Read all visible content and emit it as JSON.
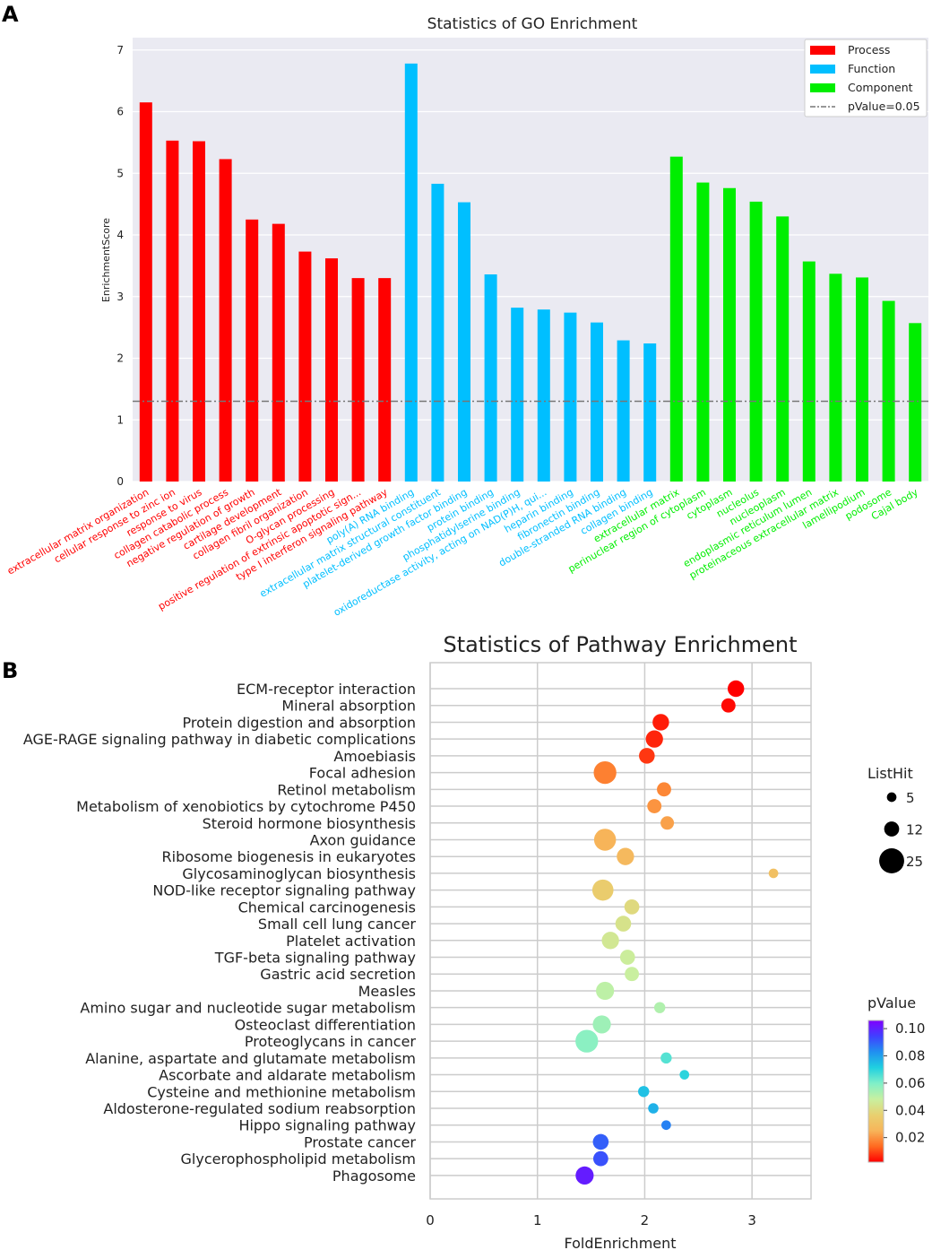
{
  "panel_a_label": "A",
  "panel_b_label": "B",
  "colors": {
    "process": "#ff0000",
    "function": "#00bfff",
    "component": "#00ee00",
    "threshold": "#777777",
    "panel_bg": "#eaeaf2",
    "pvalue_colormap": [
      "#ff0000",
      "#ff6a20",
      "#f7b55a",
      "#e8d070",
      "#c8f0a0",
      "#80f0c8",
      "#20d0e0",
      "#2090f0",
      "#4040ff",
      "#8000ff"
    ]
  },
  "chart_data": [
    {
      "type": "bar",
      "title": "Statistics of GO Enrichment",
      "xlabel": "",
      "ylabel": "EnrichmentScore",
      "ylim": [
        0,
        7.2
      ],
      "yticks": [
        0,
        1,
        2,
        3,
        4,
        5,
        6,
        7
      ],
      "grid": true,
      "legend_position": "top-right",
      "legend": [
        {
          "label": "Process",
          "group": "process"
        },
        {
          "label": "Function",
          "group": "function"
        },
        {
          "label": "Component",
          "group": "component"
        },
        {
          "label": "pValue=0.05",
          "group": "threshold"
        }
      ],
      "threshold": {
        "label": "pValue=0.05",
        "value": 1.301
      },
      "series": [
        {
          "name": "Process",
          "group": "process",
          "categories": [
            "extracellular matrix organization",
            "cellular response to zinc ion",
            "response to virus",
            "collagen catabolic process",
            "negative regulation of growth",
            "cartilage development",
            "collagen fibril organization",
            "O-glycan processing",
            "positive regulation of extrinsic apoptotic sign...",
            "type I interferon signaling pathway"
          ],
          "values": [
            6.15,
            5.53,
            5.52,
            5.23,
            4.25,
            4.18,
            3.73,
            3.62,
            3.3,
            3.3
          ]
        },
        {
          "name": "Function",
          "group": "function",
          "categories": [
            "poly(A) RNA binding",
            "extracellular matrix structural constituent",
            "platelet-derived growth factor binding",
            "protein binding",
            "phosphatidylserine binding",
            "oxidoreductase activity, acting on NAD(P)H, qui...",
            "heparin binding",
            "fibronectin binding",
            "double-stranded RNA binding",
            "collagen binding"
          ],
          "values": [
            6.78,
            4.83,
            4.53,
            3.36,
            2.82,
            2.79,
            2.74,
            2.58,
            2.29,
            2.24
          ]
        },
        {
          "name": "Component",
          "group": "component",
          "categories": [
            "extracellular matrix",
            "perinuclear region of cytoplasm",
            "cytoplasm",
            "nucleolus",
            "nucleoplasm",
            "endoplasmic reticulum lumen",
            "proteinaceous extracellular matrix",
            "lamellipodium",
            "podosome",
            "Cajal body"
          ],
          "values": [
            5.27,
            4.85,
            4.76,
            4.54,
            4.3,
            3.57,
            3.37,
            3.31,
            2.93,
            2.57
          ]
        }
      ]
    },
    {
      "type": "scatter",
      "title": "Statistics of Pathway Enrichment",
      "xlabel": "FoldEnrichment",
      "ylabel": "",
      "xlim": [
        0,
        3.55
      ],
      "xticks": [
        0,
        1,
        2,
        3
      ],
      "grid": true,
      "size_legend_title": "ListHit",
      "size_legend": [
        5,
        12,
        25
      ],
      "color_legend_title": "pValue",
      "colorbar_ticks": [
        0.1,
        0.08,
        0.06,
        0.04,
        0.02
      ],
      "colorbar_range": [
        0.002,
        0.106
      ],
      "points": [
        {
          "pathway": "ECM-receptor interaction",
          "fold": 2.85,
          "listhit": 14,
          "pvalue": 0.002
        },
        {
          "pathway": "Mineral absorption",
          "fold": 2.78,
          "listhit": 11,
          "pvalue": 0.003
        },
        {
          "pathway": "Protein digestion and absorption",
          "fold": 2.15,
          "listhit": 14,
          "pvalue": 0.005
        },
        {
          "pathway": "AGE-RAGE signaling pathway in diabetic complications",
          "fold": 2.09,
          "listhit": 15,
          "pvalue": 0.006
        },
        {
          "pathway": "Amoebiasis",
          "fold": 2.02,
          "listhit": 13,
          "pvalue": 0.008
        },
        {
          "pathway": "Focal adhesion",
          "fold": 1.63,
          "listhit": 22,
          "pvalue": 0.017
        },
        {
          "pathway": "Retinol metabolism",
          "fold": 2.18,
          "listhit": 11,
          "pvalue": 0.018
        },
        {
          "pathway": "Metabolism of xenobiotics by cytochrome P450",
          "fold": 2.09,
          "listhit": 11,
          "pvalue": 0.02
        },
        {
          "pathway": "Steroid hormone biosynthesis",
          "fold": 2.21,
          "listhit": 10,
          "pvalue": 0.022
        },
        {
          "pathway": "Axon guidance",
          "fold": 1.63,
          "listhit": 21,
          "pvalue": 0.025
        },
        {
          "pathway": "Ribosome biogenesis in eukaryotes",
          "fold": 1.82,
          "listhit": 15,
          "pvalue": 0.027
        },
        {
          "pathway": "Glycosaminoglycan biosynthesis",
          "fold": 3.2,
          "listhit": 5,
          "pvalue": 0.03
        },
        {
          "pathway": "NOD-like receptor signaling pathway",
          "fold": 1.61,
          "listhit": 20,
          "pvalue": 0.035
        },
        {
          "pathway": "Chemical carcinogenesis",
          "fold": 1.88,
          "listhit": 12,
          "pvalue": 0.04
        },
        {
          "pathway": "Small cell lung cancer",
          "fold": 1.8,
          "listhit": 13,
          "pvalue": 0.043
        },
        {
          "pathway": "Platelet activation",
          "fold": 1.68,
          "listhit": 15,
          "pvalue": 0.045
        },
        {
          "pathway": "TGF-beta signaling pathway",
          "fold": 1.84,
          "listhit": 12,
          "pvalue": 0.047
        },
        {
          "pathway": "Gastric acid secretion",
          "fold": 1.88,
          "listhit": 11,
          "pvalue": 0.048
        },
        {
          "pathway": "Measles",
          "fold": 1.63,
          "listhit": 16,
          "pvalue": 0.05
        },
        {
          "pathway": "Amino sugar and nucleotide sugar metabolism",
          "fold": 2.14,
          "listhit": 7,
          "pvalue": 0.052
        },
        {
          "pathway": "Osteoclast differentiation",
          "fold": 1.6,
          "listhit": 16,
          "pvalue": 0.055
        },
        {
          "pathway": "Proteoglycans in cancer",
          "fold": 1.46,
          "listhit": 22,
          "pvalue": 0.058
        },
        {
          "pathway": "Alanine, aspartate and glutamate metabolism",
          "fold": 2.2,
          "listhit": 7,
          "pvalue": 0.065
        },
        {
          "pathway": "Ascorbate and aldarate metabolism",
          "fold": 2.37,
          "listhit": 5,
          "pvalue": 0.07
        },
        {
          "pathway": "Cysteine and methionine metabolism",
          "fold": 1.99,
          "listhit": 7,
          "pvalue": 0.074
        },
        {
          "pathway": "Aldosterone-regulated sodium reabsorption",
          "fold": 2.08,
          "listhit": 6,
          "pvalue": 0.077
        },
        {
          "pathway": "Hippo signaling pathway",
          "fold": 2.2,
          "listhit": 5,
          "pvalue": 0.085
        },
        {
          "pathway": "Prostate cancer",
          "fold": 1.59,
          "listhit": 13,
          "pvalue": 0.09
        },
        {
          "pathway": "Glycerophospholipid metabolism",
          "fold": 1.59,
          "listhit": 12,
          "pvalue": 0.092
        },
        {
          "pathway": "Phagosome",
          "fold": 1.44,
          "listhit": 16,
          "pvalue": 0.101
        }
      ]
    }
  ]
}
